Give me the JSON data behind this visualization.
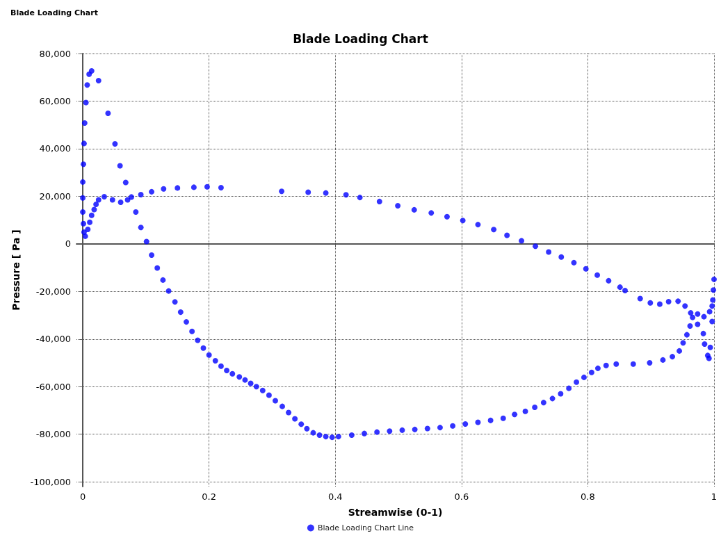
{
  "chart_data": {
    "type": "scatter",
    "title": "Blade Loading Chart",
    "xlabel": "Streamwise (0-1)",
    "ylabel": "Pressure [ Pa ]",
    "annotations": [
      "Blade Loading Chart"
    ],
    "series": [
      {
        "name": "Blade Loading Chart Line",
        "color": "#0000ff",
        "x": [
          1.0,
          0.999,
          0.998,
          0.997,
          0.993,
          0.984,
          0.974,
          0.966,
          0.962,
          0.957,
          0.951,
          0.945,
          0.934,
          0.919,
          0.898,
          0.872,
          0.845,
          0.829,
          0.816,
          0.806,
          0.794,
          0.782,
          0.77,
          0.757,
          0.744,
          0.73,
          0.716,
          0.701,
          0.684,
          0.666,
          0.646,
          0.626,
          0.606,
          0.586,
          0.566,
          0.546,
          0.526,
          0.506,
          0.486,
          0.466,
          0.446,
          0.426,
          0.405,
          0.395,
          0.385,
          0.375,
          0.365,
          0.355,
          0.346,
          0.336,
          0.326,
          0.316,
          0.305,
          0.295,
          0.285,
          0.275,
          0.266,
          0.257,
          0.248,
          0.237,
          0.228,
          0.219,
          0.21,
          0.2,
          0.191,
          0.182,
          0.173,
          0.164,
          0.155,
          0.146,
          0.136,
          0.127,
          0.118,
          0.109,
          0.101,
          0.092,
          0.084,
          0.068,
          0.059,
          0.051,
          0.04,
          0.025,
          0.014,
          0.01,
          0.007,
          0.005,
          0.003,
          0.002,
          0.001,
          0.0,
          0.0,
          0.0,
          0.001,
          0.002,
          0.004,
          0.008,
          0.011,
          0.014,
          0.018,
          0.021,
          0.025,
          0.034,
          0.047,
          0.06,
          0.071,
          0.077,
          0.092,
          0.109,
          0.128,
          0.15,
          0.176,
          0.197,
          0.219,
          0.315,
          0.357,
          0.385,
          0.417,
          0.439,
          0.47,
          0.499,
          0.525,
          0.552,
          0.577,
          0.602,
          0.626,
          0.651,
          0.672,
          0.695,
          0.717,
          0.738,
          0.758,
          0.778,
          0.797,
          0.815,
          0.833,
          0.851,
          0.859,
          0.883,
          0.899,
          0.914,
          0.928,
          0.943,
          0.954,
          0.963,
          0.974,
          0.983,
          0.985,
          0.99,
          0.992,
          0.994,
          0.997
        ],
        "values": [
          -14900,
          -19400,
          -23600,
          -26100,
          -28500,
          -30600,
          -29500,
          -30900,
          -34500,
          -38200,
          -41600,
          -45000,
          -47400,
          -48800,
          -50000,
          -50500,
          -50500,
          -51100,
          -52300,
          -54000,
          -56100,
          -58100,
          -60700,
          -63000,
          -65000,
          -66700,
          -68700,
          -70400,
          -71700,
          -73300,
          -74200,
          -75000,
          -75700,
          -76500,
          -77200,
          -77600,
          -78000,
          -78300,
          -78700,
          -79100,
          -79700,
          -80400,
          -81000,
          -81300,
          -81000,
          -80400,
          -79400,
          -77700,
          -75800,
          -73500,
          -70900,
          -68300,
          -65900,
          -63600,
          -61600,
          -60000,
          -58600,
          -57200,
          -55900,
          -54600,
          -53200,
          -51400,
          -49100,
          -46700,
          -43800,
          -40500,
          -36800,
          -32800,
          -28700,
          -24400,
          -19800,
          -15200,
          -10100,
          -4700,
          1000,
          6900,
          13400,
          25800,
          32800,
          42000,
          54900,
          68600,
          72700,
          71300,
          66800,
          59400,
          50800,
          42200,
          33500,
          26000,
          19300,
          13400,
          8500,
          4900,
          3200,
          6100,
          9100,
          12000,
          14400,
          16600,
          18500,
          19800,
          18500,
          17500,
          18500,
          19700,
          20700,
          21900,
          23100,
          23500,
          23800,
          24000,
          23600,
          22100,
          21700,
          21400,
          20600,
          19500,
          17800,
          16000,
          14300,
          13000,
          11400,
          9800,
          8100,
          6000,
          3600,
          1300,
          -1000,
          -3400,
          -5500,
          -7900,
          -10500,
          -13100,
          -15500,
          -18200,
          -19600,
          -23000,
          -24800,
          -25300,
          -24300,
          -24100,
          -26100,
          -29000,
          -33800,
          -37700,
          -42100,
          -46900,
          -48100,
          -43500,
          -32600
        ]
      }
    ],
    "xlim": [
      -0.01,
      1
    ],
    "xticks": [
      0,
      0.2,
      0.4,
      0.6,
      0.8,
      1
    ],
    "ylim": [
      -102000,
      80000
    ],
    "yticks": [
      {
        "value": -100000,
        "label": "-100,000"
      },
      {
        "value": -80000,
        "label": "-80,000"
      },
      {
        "value": -60000,
        "label": "-60,000"
      },
      {
        "value": -40000,
        "label": "-40,000"
      },
      {
        "value": -20000,
        "label": "-20,000"
      },
      {
        "value": 0,
        "label": "0"
      },
      {
        "value": 20000,
        "label": "20,000"
      },
      {
        "value": 40000,
        "label": "40,000"
      },
      {
        "value": 60000,
        "label": "60,000"
      },
      {
        "value": 80000,
        "label": "80,000"
      }
    ],
    "grid": true,
    "legend": "bottom",
    "marker": "circle"
  }
}
